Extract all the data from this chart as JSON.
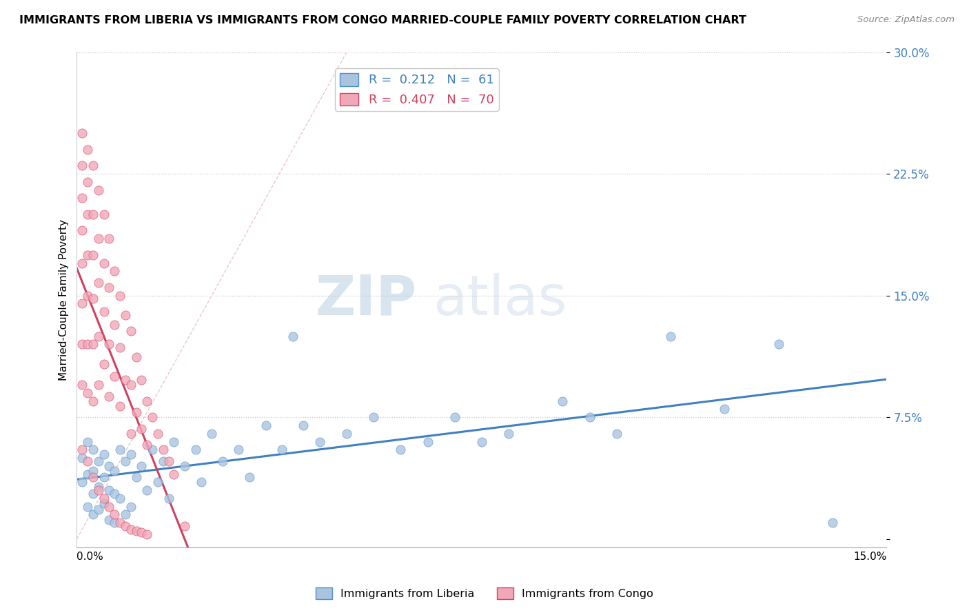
{
  "title": "IMMIGRANTS FROM LIBERIA VS IMMIGRANTS FROM CONGO MARRIED-COUPLE FAMILY POVERTY CORRELATION CHART",
  "source": "Source: ZipAtlas.com",
  "ylabel": "Married-Couple Family Poverty",
  "xmin": 0.0,
  "xmax": 0.15,
  "ymin": -0.005,
  "ymax": 0.3,
  "liberia_R": 0.212,
  "liberia_N": 61,
  "congo_R": 0.407,
  "congo_N": 70,
  "liberia_color": "#aac4e0",
  "congo_color": "#f0a8b8",
  "liberia_edge_color": "#5090c8",
  "congo_edge_color": "#d84060",
  "liberia_line_color": "#4080c0",
  "congo_line_color": "#d04060",
  "diagonal_color": "#e8c8cc",
  "watermark_zip": "ZIP",
  "watermark_atlas": "atlas",
  "bg_color": "#ffffff",
  "ytick_vals": [
    0.0,
    0.075,
    0.15,
    0.225,
    0.3
  ],
  "ytick_labels": [
    "",
    "7.5%",
    "15.0%",
    "22.5%",
    "30.0%"
  ],
  "liberia_x": [
    0.001,
    0.001,
    0.002,
    0.002,
    0.002,
    0.003,
    0.003,
    0.003,
    0.003,
    0.004,
    0.004,
    0.004,
    0.005,
    0.005,
    0.005,
    0.006,
    0.006,
    0.006,
    0.007,
    0.007,
    0.007,
    0.008,
    0.008,
    0.009,
    0.009,
    0.01,
    0.01,
    0.011,
    0.012,
    0.013,
    0.014,
    0.015,
    0.016,
    0.017,
    0.018,
    0.02,
    0.022,
    0.023,
    0.025,
    0.027,
    0.03,
    0.032,
    0.035,
    0.038,
    0.04,
    0.042,
    0.045,
    0.05,
    0.055,
    0.06,
    0.065,
    0.07,
    0.075,
    0.08,
    0.09,
    0.095,
    0.1,
    0.11,
    0.12,
    0.13,
    0.14
  ],
  "liberia_y": [
    0.05,
    0.035,
    0.06,
    0.04,
    0.02,
    0.055,
    0.042,
    0.028,
    0.015,
    0.048,
    0.032,
    0.018,
    0.052,
    0.038,
    0.022,
    0.045,
    0.03,
    0.012,
    0.042,
    0.028,
    0.01,
    0.055,
    0.025,
    0.048,
    0.015,
    0.052,
    0.02,
    0.038,
    0.045,
    0.03,
    0.055,
    0.035,
    0.048,
    0.025,
    0.06,
    0.045,
    0.055,
    0.035,
    0.065,
    0.048,
    0.055,
    0.038,
    0.07,
    0.055,
    0.125,
    0.07,
    0.06,
    0.065,
    0.075,
    0.055,
    0.06,
    0.075,
    0.06,
    0.065,
    0.085,
    0.075,
    0.065,
    0.125,
    0.08,
    0.12,
    0.01
  ],
  "congo_x": [
    0.001,
    0.001,
    0.001,
    0.001,
    0.001,
    0.001,
    0.001,
    0.001,
    0.002,
    0.002,
    0.002,
    0.002,
    0.002,
    0.002,
    0.002,
    0.003,
    0.003,
    0.003,
    0.003,
    0.003,
    0.003,
    0.004,
    0.004,
    0.004,
    0.004,
    0.004,
    0.005,
    0.005,
    0.005,
    0.005,
    0.006,
    0.006,
    0.006,
    0.006,
    0.007,
    0.007,
    0.007,
    0.008,
    0.008,
    0.008,
    0.009,
    0.009,
    0.01,
    0.01,
    0.01,
    0.011,
    0.011,
    0.012,
    0.012,
    0.013,
    0.013,
    0.014,
    0.015,
    0.016,
    0.017,
    0.018,
    0.001,
    0.002,
    0.003,
    0.004,
    0.005,
    0.006,
    0.007,
    0.008,
    0.009,
    0.01,
    0.011,
    0.012,
    0.013,
    0.02
  ],
  "congo_y": [
    0.25,
    0.23,
    0.21,
    0.19,
    0.17,
    0.145,
    0.12,
    0.095,
    0.24,
    0.22,
    0.2,
    0.175,
    0.15,
    0.12,
    0.09,
    0.23,
    0.2,
    0.175,
    0.148,
    0.12,
    0.085,
    0.215,
    0.185,
    0.158,
    0.125,
    0.095,
    0.2,
    0.17,
    0.14,
    0.108,
    0.185,
    0.155,
    0.12,
    0.088,
    0.165,
    0.132,
    0.1,
    0.15,
    0.118,
    0.082,
    0.138,
    0.098,
    0.128,
    0.095,
    0.065,
    0.112,
    0.078,
    0.098,
    0.068,
    0.085,
    0.058,
    0.075,
    0.065,
    0.055,
    0.048,
    0.04,
    0.055,
    0.048,
    0.038,
    0.03,
    0.025,
    0.02,
    0.015,
    0.01,
    0.008,
    0.006,
    0.005,
    0.004,
    0.003,
    0.008
  ]
}
